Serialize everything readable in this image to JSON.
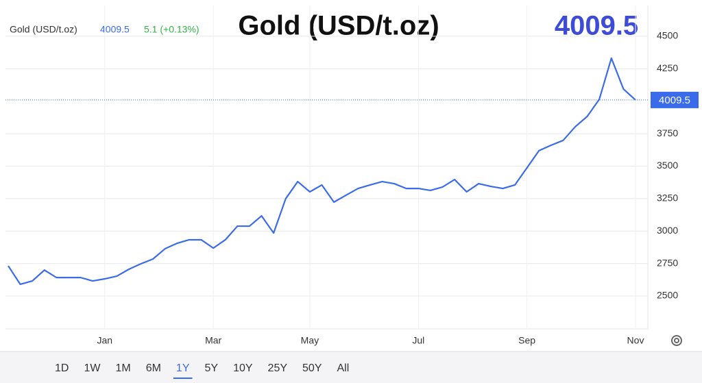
{
  "chart_data": {
    "type": "line",
    "title": "Gold (USD/t.oz)",
    "last": 4009.5,
    "change": "5.1 (+0.13%)",
    "categories": [
      null,
      null,
      null,
      null,
      null,
      null,
      null,
      null,
      "Jan",
      null,
      null,
      null,
      null,
      null,
      null,
      null,
      null,
      "Mar",
      null,
      null,
      null,
      null,
      null,
      null,
      null,
      "May",
      null,
      null,
      null,
      null,
      null,
      null,
      null,
      null,
      "Jul",
      null,
      null,
      null,
      null,
      null,
      null,
      null,
      null,
      "Sep",
      null,
      null,
      null,
      null,
      null,
      null,
      null,
      null,
      "Nov"
    ],
    "series": [
      {
        "name": "Gold (USD/t.oz)",
        "color": "#3a6bea",
        "values": [
          2732,
          2590,
          2616,
          2700,
          2642,
          2642,
          2642,
          2616,
          2632,
          2653,
          2706,
          2748,
          2785,
          2864,
          2906,
          2933,
          2933,
          2869,
          2933,
          3038,
          3038,
          3117,
          2985,
          3249,
          3381,
          3302,
          3355,
          3223,
          3276,
          3328,
          3355,
          3381,
          3365,
          3328,
          3328,
          3313,
          3339,
          3397,
          3302,
          3365,
          3344,
          3328,
          3355,
          3487,
          3619,
          3661,
          3698,
          3803,
          3883,
          4015,
          4331,
          4094,
          4009.5
        ]
      }
    ],
    "ylim": [
      2247,
      4737
    ],
    "yticks": [
      2500,
      2750,
      3000,
      3250,
      3500,
      3750,
      4250,
      4500
    ],
    "grid": true,
    "ranges": [
      "1D",
      "1W",
      "1M",
      "6M",
      "1Y",
      "5Y",
      "10Y",
      "25Y",
      "50Y",
      "All"
    ],
    "selected_range": "1Y"
  }
}
